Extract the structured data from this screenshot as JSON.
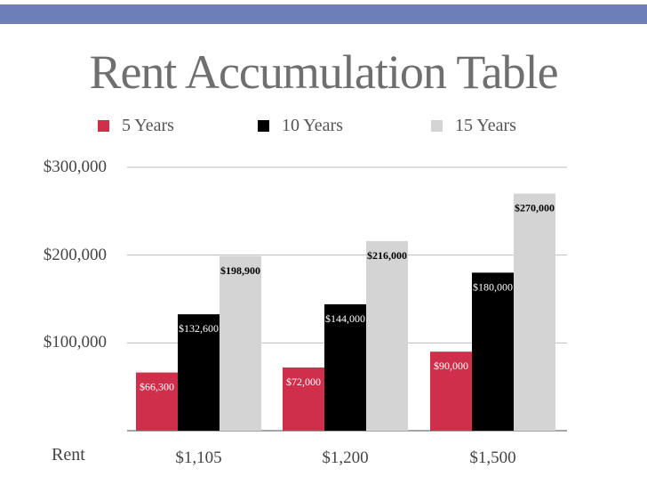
{
  "title": "Rent Accumulation Table",
  "colors": {
    "header_bar": "#6e7fb8",
    "series": [
      "#cf2f4b",
      "#000000",
      "#d4d4d4"
    ],
    "label_text": [
      "#ffffff",
      "#ffffff",
      "#000000"
    ]
  },
  "legend": {
    "position": "top",
    "items": [
      {
        "label": "5 Years"
      },
      {
        "label": "10 Years"
      },
      {
        "label": "15 Years"
      }
    ]
  },
  "x_axis_label": "Rent",
  "y_tick_labels": [
    "$300,000",
    "$200,000",
    "$100,000"
  ],
  "chart_data": {
    "type": "bar",
    "title": "Rent Accumulation Table",
    "xlabel": "Rent",
    "ylabel": "",
    "categories": [
      "$1,105",
      "$1,200",
      "$1,500"
    ],
    "series": [
      {
        "name": "5 Years",
        "values": [
          66300,
          72000,
          90000
        ],
        "labels": [
          "$66,300",
          "$72,000",
          "$90,000"
        ]
      },
      {
        "name": "10 Years",
        "values": [
          132600,
          144000,
          180000
        ],
        "labels": [
          "$132,600",
          "$144,000",
          "$180,000"
        ]
      },
      {
        "name": "15 Years",
        "values": [
          198900,
          216000,
          270000
        ],
        "labels": [
          "$198,900",
          "$216,000",
          "$270,000"
        ]
      }
    ],
    "ylim": [
      0,
      300000
    ],
    "yticks": [
      100000,
      200000,
      300000
    ],
    "grid": true,
    "legend_position": "top"
  }
}
